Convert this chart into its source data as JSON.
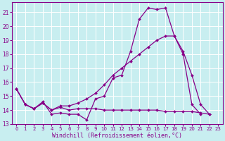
{
  "xlabel": "Windchill (Refroidissement éolien,°C)",
  "bg_color": "#c8eef0",
  "grid_color": "#ffffff",
  "line_color": "#880088",
  "xlim": [
    -0.5,
    23.5
  ],
  "ylim": [
    13,
    21.7
  ],
  "yticks": [
    13,
    14,
    15,
    16,
    17,
    18,
    19,
    20,
    21
  ],
  "xticks": [
    0,
    1,
    2,
    3,
    4,
    5,
    6,
    7,
    8,
    9,
    10,
    11,
    12,
    13,
    14,
    15,
    16,
    17,
    18,
    19,
    20,
    21,
    22,
    23
  ],
  "series": [
    [
      15.5,
      14.4,
      14.1,
      14.6,
      13.7,
      13.8,
      13.7,
      13.7,
      13.3,
      14.8,
      15.0,
      16.3,
      16.5,
      18.2,
      20.5,
      21.3,
      21.2,
      21.3,
      19.3,
      18.2,
      16.5,
      14.4,
      13.7
    ],
    [
      15.5,
      14.4,
      14.1,
      14.5,
      14.0,
      14.3,
      14.3,
      14.5,
      14.8,
      15.2,
      15.8,
      16.5,
      17.0,
      17.5,
      18.0,
      18.5,
      19.0,
      19.3,
      19.3,
      18.0,
      14.4,
      13.7,
      null
    ],
    [
      15.5,
      14.4,
      14.1,
      14.5,
      14.0,
      14.2,
      14.0,
      14.1,
      14.1,
      14.1,
      14.0,
      14.0,
      14.0,
      14.0,
      14.0,
      14.0,
      14.0,
      13.9,
      13.9,
      13.9,
      13.9,
      13.8,
      13.7
    ]
  ]
}
